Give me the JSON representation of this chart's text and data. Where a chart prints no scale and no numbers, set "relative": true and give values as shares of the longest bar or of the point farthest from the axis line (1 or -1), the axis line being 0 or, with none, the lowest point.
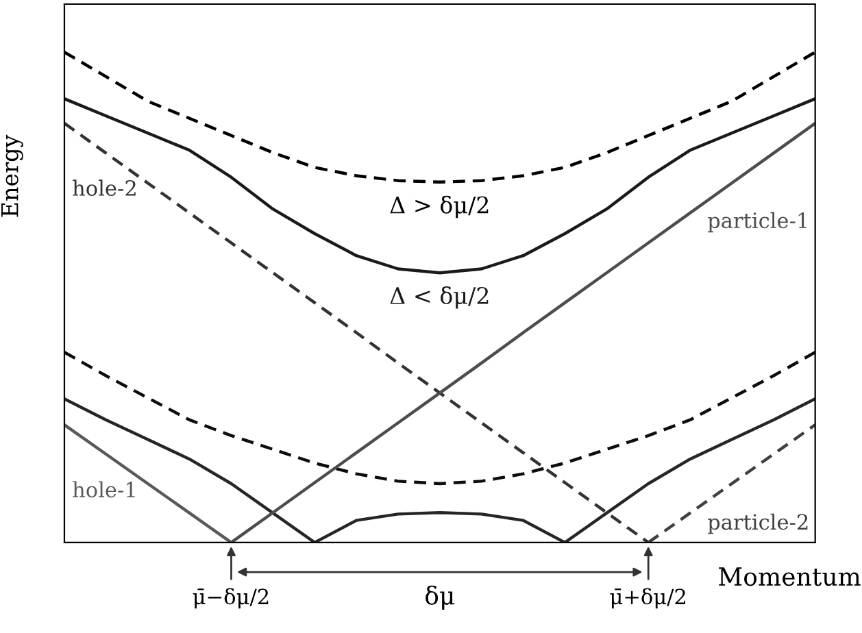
{
  "chart_data": {
    "type": "line",
    "relative": true,
    "xlabel": "Momentum",
    "ylabel": "Energy",
    "categories": [
      null,
      null,
      null,
      null,
      "μ̄−δμ/2",
      null,
      null,
      null,
      null,
      null,
      null,
      null,
      null,
      null,
      "μ̄+δμ/2",
      null,
      null,
      null,
      null
    ],
    "tick_labels": "x",
    "series": [
      {
        "name": "Δ > δμ/2",
        "color": "#000000",
        "line_style": "dashed",
        "values": [
          1.0,
          0.95,
          0.9,
          0.865,
          0.83,
          0.795,
          0.765,
          0.748,
          0.738,
          0.735,
          0.738,
          0.748,
          0.765,
          0.795,
          0.83,
          0.865,
          0.9,
          0.95,
          1.0
        ]
      },
      {
        "name": "Δ < δμ/2",
        "color": "#1a1a1a",
        "line_style": "solid",
        "values": [
          0.905,
          0.87,
          0.835,
          0.8,
          0.745,
          0.68,
          0.63,
          0.585,
          0.558,
          0.55,
          0.558,
          0.585,
          0.63,
          0.68,
          0.745,
          0.8,
          0.835,
          0.87,
          0.905
        ]
      },
      {
        "color": "#0d0d0d",
        "line_style": "dashed",
        "values": [
          0.388,
          0.34,
          0.295,
          0.25,
          0.218,
          0.19,
          0.162,
          0.14,
          0.125,
          0.12,
          0.125,
          0.14,
          0.162,
          0.19,
          0.218,
          0.25,
          0.295,
          0.34,
          0.388
        ]
      },
      {
        "color": "#262626",
        "line_style": "solid",
        "values": [
          0.293,
          0.25,
          0.21,
          0.17,
          0.12,
          0.06,
          0,
          0.045,
          0.058,
          0.061,
          0.058,
          0.045,
          0,
          0.06,
          0.12,
          0.17,
          0.21,
          0.25,
          0.293
        ]
      },
      {
        "name": "hole-2",
        "color": "#333333",
        "line_style": "dashed",
        "values": [
          0.855,
          0.794,
          0.733,
          0.672,
          0.611,
          0.55,
          0.489,
          0.428,
          0.366,
          0.305,
          0.244,
          0.183,
          0.122,
          0.061,
          0,
          null,
          null,
          null,
          null
        ]
      },
      {
        "name": "particle-2",
        "color": "#404040",
        "line_style": "dashed",
        "values": [
          null,
          null,
          null,
          null,
          null,
          null,
          null,
          null,
          null,
          null,
          null,
          null,
          null,
          null,
          0,
          0.06,
          0.12,
          0.18,
          0.24
        ]
      },
      {
        "name": "particle-1",
        "color": "#4d4d4d",
        "line_style": "solid",
        "values": [
          null,
          null,
          null,
          null,
          0,
          0.061,
          0.122,
          0.183,
          0.244,
          0.305,
          0.366,
          0.428,
          0.489,
          0.55,
          0.611,
          0.672,
          0.733,
          0.794,
          0.855
        ]
      },
      {
        "name": "hole-1",
        "color": "#595959",
        "line_style": "solid",
        "values": [
          0.24,
          0.18,
          0.12,
          0.06,
          0,
          null,
          null,
          null,
          null,
          null,
          null,
          null,
          null,
          null,
          null,
          null,
          null,
          null,
          null
        ]
      }
    ],
    "annotations": [
      "δμ"
    ]
  }
}
